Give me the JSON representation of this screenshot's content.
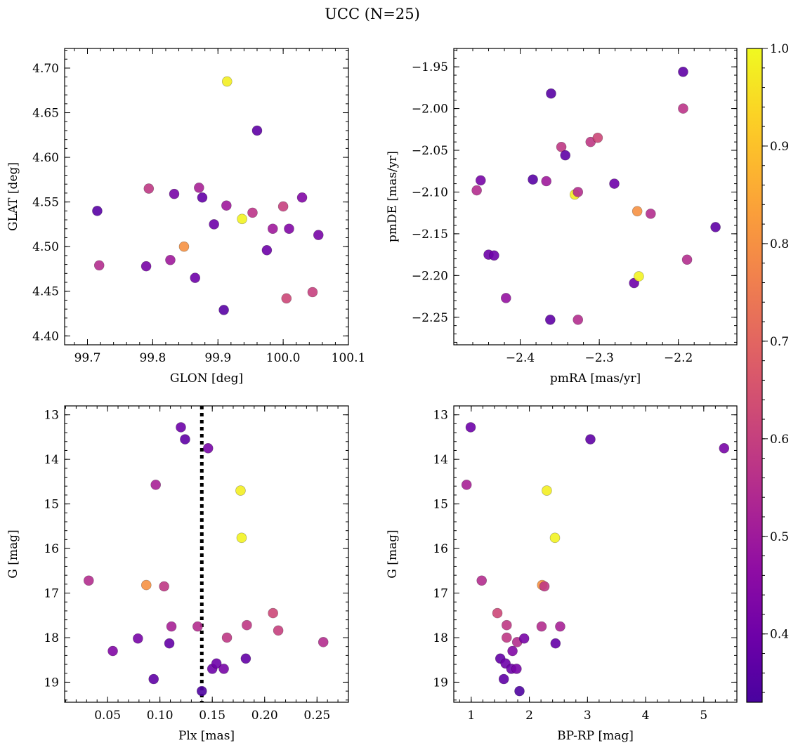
{
  "figure": {
    "title": "UCC (N=25)"
  },
  "colorbar": {
    "range": [
      0.33,
      1.0
    ],
    "ticks": [
      0.4,
      0.5,
      0.6,
      0.7,
      0.8,
      0.9,
      1.0
    ],
    "tick_labels": [
      "0.4",
      "0.5",
      "0.6",
      "0.7",
      "0.8",
      "0.9",
      "1.0"
    ],
    "colormap": "plasma"
  },
  "chart_data": [
    {
      "type": "scatter",
      "id": "glon-glat",
      "xlabel": "GLON [deg]",
      "ylabel": "GLAT [deg]",
      "xlim": [
        99.665,
        100.1
      ],
      "ylim": [
        4.39,
        4.722
      ],
      "xticks": [
        99.7,
        99.8,
        99.9,
        100.0,
        100.1
      ],
      "xtick_labels": [
        "99.7",
        "99.8",
        "99.9",
        "100.0",
        "100.1"
      ],
      "yticks": [
        4.4,
        4.45,
        4.5,
        4.55,
        4.6,
        4.65,
        4.7
      ],
      "ytick_labels": [
        "4.40",
        "4.45",
        "4.50",
        "4.55",
        "4.60",
        "4.65",
        "4.70"
      ],
      "y_inverted": false,
      "points": [
        {
          "x": 99.715,
          "y": 4.54,
          "c": 0.36
        },
        {
          "x": 99.718,
          "y": 4.479,
          "c": 0.55
        },
        {
          "x": 99.79,
          "y": 4.478,
          "c": 0.42
        },
        {
          "x": 99.794,
          "y": 4.565,
          "c": 0.58
        },
        {
          "x": 99.827,
          "y": 4.485,
          "c": 0.5
        },
        {
          "x": 99.833,
          "y": 4.559,
          "c": 0.42
        },
        {
          "x": 99.848,
          "y": 4.5,
          "c": 0.8
        },
        {
          "x": 99.865,
          "y": 4.465,
          "c": 0.4
        },
        {
          "x": 99.871,
          "y": 4.566,
          "c": 0.52
        },
        {
          "x": 99.876,
          "y": 4.555,
          "c": 0.38
        },
        {
          "x": 99.894,
          "y": 4.525,
          "c": 0.4
        },
        {
          "x": 99.909,
          "y": 4.429,
          "c": 0.36
        },
        {
          "x": 99.913,
          "y": 4.546,
          "c": 0.5
        },
        {
          "x": 99.914,
          "y": 4.685,
          "c": 0.98
        },
        {
          "x": 99.937,
          "y": 4.531,
          "c": 0.99
        },
        {
          "x": 99.953,
          "y": 4.538,
          "c": 0.57
        },
        {
          "x": 99.96,
          "y": 4.63,
          "c": 0.37
        },
        {
          "x": 99.975,
          "y": 4.496,
          "c": 0.4
        },
        {
          "x": 99.984,
          "y": 4.52,
          "c": 0.5
        },
        {
          "x": 100.0,
          "y": 4.545,
          "c": 0.6
        },
        {
          "x": 100.005,
          "y": 4.442,
          "c": 0.62
        },
        {
          "x": 100.009,
          "y": 4.52,
          "c": 0.44
        },
        {
          "x": 100.029,
          "y": 4.555,
          "c": 0.44
        },
        {
          "x": 100.045,
          "y": 4.449,
          "c": 0.6
        },
        {
          "x": 100.054,
          "y": 4.513,
          "c": 0.42
        }
      ]
    },
    {
      "type": "scatter",
      "id": "pmra-pmde",
      "xlabel": "pmRA [mas/yr]",
      "ylabel": "pmDE [mas/yr]",
      "xlim": [
        -2.484,
        -2.126
      ],
      "ylim": [
        -2.283,
        -1.928
      ],
      "xticks": [
        -2.4,
        -2.3,
        -2.2
      ],
      "xtick_labels": [
        "−2.4",
        "−2.3",
        "−2.2"
      ],
      "yticks": [
        -2.25,
        -2.2,
        -2.15,
        -2.1,
        -2.05,
        -2.0,
        -1.95
      ],
      "ytick_labels": [
        "−2.25",
        "−2.20",
        "−2.15",
        "−2.10",
        "−2.05",
        "−2.00",
        "−1.95"
      ],
      "y_inverted": false,
      "points": [
        {
          "x": -2.455,
          "y": -2.098,
          "c": 0.55
        },
        {
          "x": -2.45,
          "y": -2.086,
          "c": 0.42
        },
        {
          "x": -2.44,
          "y": -2.175,
          "c": 0.4
        },
        {
          "x": -2.433,
          "y": -2.176,
          "c": 0.4
        },
        {
          "x": -2.418,
          "y": -2.227,
          "c": 0.48
        },
        {
          "x": -2.384,
          "y": -2.085,
          "c": 0.36
        },
        {
          "x": -2.367,
          "y": -2.087,
          "c": 0.5
        },
        {
          "x": -2.362,
          "y": -2.253,
          "c": 0.37
        },
        {
          "x": -2.361,
          "y": -1.982,
          "c": 0.36
        },
        {
          "x": -2.348,
          "y": -2.046,
          "c": 0.58
        },
        {
          "x": -2.343,
          "y": -2.056,
          "c": 0.37
        },
        {
          "x": -2.331,
          "y": -2.103,
          "c": 0.98
        },
        {
          "x": -2.327,
          "y": -2.1,
          "c": 0.55
        },
        {
          "x": -2.327,
          "y": -2.253,
          "c": 0.55
        },
        {
          "x": -2.311,
          "y": -2.04,
          "c": 0.58
        },
        {
          "x": -2.302,
          "y": -2.035,
          "c": 0.62
        },
        {
          "x": -2.281,
          "y": -2.09,
          "c": 0.4
        },
        {
          "x": -2.256,
          "y": -2.209,
          "c": 0.4
        },
        {
          "x": -2.252,
          "y": -2.123,
          "c": 0.8
        },
        {
          "x": -2.25,
          "y": -2.201,
          "c": 0.99
        },
        {
          "x": -2.235,
          "y": -2.126,
          "c": 0.55
        },
        {
          "x": -2.194,
          "y": -2.0,
          "c": 0.57
        },
        {
          "x": -2.194,
          "y": -1.956,
          "c": 0.37
        },
        {
          "x": -2.189,
          "y": -2.181,
          "c": 0.55
        },
        {
          "x": -2.153,
          "y": -2.142,
          "c": 0.37
        }
      ]
    },
    {
      "type": "scatter",
      "id": "plx-g",
      "xlabel": "Plx [mas]",
      "ylabel": "G [mag]",
      "xlim": [
        0.009,
        0.28
      ],
      "ylim": [
        12.8,
        19.45
      ],
      "xticks": [
        0.05,
        0.1,
        0.15,
        0.2,
        0.25
      ],
      "xtick_labels": [
        "0.05",
        "0.10",
        "0.15",
        "0.20",
        "0.25"
      ],
      "yticks": [
        13,
        14,
        15,
        16,
        17,
        18,
        19
      ],
      "ytick_labels": [
        "13",
        "14",
        "15",
        "16",
        "17",
        "18",
        "19"
      ],
      "y_inverted": true,
      "vline": {
        "x": 0.14,
        "style": "dotted"
      },
      "points": [
        {
          "x": 0.032,
          "y": 16.72,
          "c": 0.55
        },
        {
          "x": 0.055,
          "y": 18.3,
          "c": 0.44
        },
        {
          "x": 0.079,
          "y": 18.02,
          "c": 0.42
        },
        {
          "x": 0.087,
          "y": 16.82,
          "c": 0.8
        },
        {
          "x": 0.094,
          "y": 18.93,
          "c": 0.37
        },
        {
          "x": 0.096,
          "y": 14.57,
          "c": 0.52
        },
        {
          "x": 0.104,
          "y": 16.85,
          "c": 0.58
        },
        {
          "x": 0.109,
          "y": 18.13,
          "c": 0.38
        },
        {
          "x": 0.111,
          "y": 17.75,
          "c": 0.52
        },
        {
          "x": 0.12,
          "y": 13.28,
          "c": 0.4
        },
        {
          "x": 0.124,
          "y": 13.55,
          "c": 0.37
        },
        {
          "x": 0.136,
          "y": 17.75,
          "c": 0.55
        },
        {
          "x": 0.14,
          "y": 19.2,
          "c": 0.34
        },
        {
          "x": 0.146,
          "y": 13.75,
          "c": 0.42
        },
        {
          "x": 0.15,
          "y": 18.7,
          "c": 0.4
        },
        {
          "x": 0.154,
          "y": 18.58,
          "c": 0.4
        },
        {
          "x": 0.161,
          "y": 18.7,
          "c": 0.42
        },
        {
          "x": 0.164,
          "y": 18.0,
          "c": 0.58
        },
        {
          "x": 0.177,
          "y": 14.7,
          "c": 0.98
        },
        {
          "x": 0.178,
          "y": 15.76,
          "c": 0.99
        },
        {
          "x": 0.182,
          "y": 18.47,
          "c": 0.38
        },
        {
          "x": 0.183,
          "y": 17.72,
          "c": 0.58
        },
        {
          "x": 0.208,
          "y": 17.45,
          "c": 0.62
        },
        {
          "x": 0.213,
          "y": 17.84,
          "c": 0.6
        },
        {
          "x": 0.256,
          "y": 18.1,
          "c": 0.55
        }
      ]
    },
    {
      "type": "scatter",
      "id": "bprp-g",
      "xlabel": "BP-RP [mag]",
      "ylabel": "G [mag]",
      "xlim": [
        0.7,
        5.57
      ],
      "ylim": [
        12.8,
        19.45
      ],
      "xticks": [
        1,
        2,
        3,
        4,
        5
      ],
      "xtick_labels": [
        "1",
        "2",
        "3",
        "4",
        "5"
      ],
      "yticks": [
        13,
        14,
        15,
        16,
        17,
        18,
        19
      ],
      "ytick_labels": [
        "13",
        "14",
        "15",
        "16",
        "17",
        "18",
        "19"
      ],
      "y_inverted": true,
      "points": [
        {
          "x": 0.92,
          "y": 14.57,
          "c": 0.52
        },
        {
          "x": 0.99,
          "y": 13.28,
          "c": 0.4
        },
        {
          "x": 1.18,
          "y": 16.72,
          "c": 0.55
        },
        {
          "x": 1.45,
          "y": 17.45,
          "c": 0.62
        },
        {
          "x": 1.5,
          "y": 18.47,
          "c": 0.38
        },
        {
          "x": 1.56,
          "y": 18.93,
          "c": 0.37
        },
        {
          "x": 1.59,
          "y": 18.58,
          "c": 0.4
        },
        {
          "x": 1.61,
          "y": 18.0,
          "c": 0.58
        },
        {
          "x": 1.61,
          "y": 17.72,
          "c": 0.58
        },
        {
          "x": 1.69,
          "y": 18.7,
          "c": 0.4
        },
        {
          "x": 1.71,
          "y": 18.3,
          "c": 0.44
        },
        {
          "x": 1.78,
          "y": 18.7,
          "c": 0.42
        },
        {
          "x": 1.79,
          "y": 18.1,
          "c": 0.55
        },
        {
          "x": 1.83,
          "y": 19.2,
          "c": 0.34
        },
        {
          "x": 1.91,
          "y": 18.02,
          "c": 0.42
        },
        {
          "x": 2.21,
          "y": 17.75,
          "c": 0.55
        },
        {
          "x": 2.22,
          "y": 16.82,
          "c": 0.8
        },
        {
          "x": 2.26,
          "y": 16.85,
          "c": 0.58
        },
        {
          "x": 2.3,
          "y": 14.7,
          "c": 0.98
        },
        {
          "x": 2.44,
          "y": 15.76,
          "c": 0.99
        },
        {
          "x": 2.45,
          "y": 18.13,
          "c": 0.38
        },
        {
          "x": 2.53,
          "y": 17.75,
          "c": 0.52
        },
        {
          "x": 3.05,
          "y": 13.55,
          "c": 0.37
        },
        {
          "x": 5.35,
          "y": 13.75,
          "c": 0.42
        }
      ]
    }
  ]
}
